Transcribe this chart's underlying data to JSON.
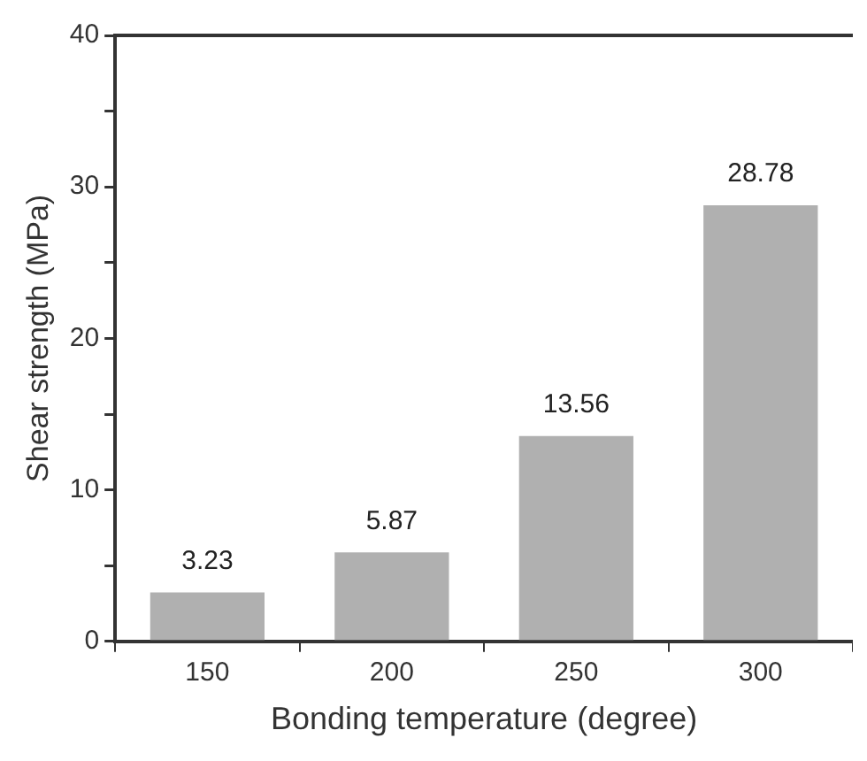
{
  "chart_data": {
    "type": "bar",
    "xlabel": "Bonding temperature (degree)",
    "ylabel": "Shear strength (MPa)",
    "categories": [
      "150",
      "200",
      "250",
      "300"
    ],
    "values": [
      3.23,
      5.87,
      13.56,
      28.78
    ],
    "color": "#b0b0b0",
    "ylim": [
      0,
      40
    ],
    "yticks": [
      0,
      {
        "value": 5,
        "label": null
      },
      10,
      {
        "value": 15,
        "label": null
      },
      20,
      {
        "value": 25,
        "label": null
      },
      30,
      {
        "value": 35,
        "label": null
      },
      40
    ],
    "data_labels": true,
    "grid": false,
    "legend": false
  }
}
